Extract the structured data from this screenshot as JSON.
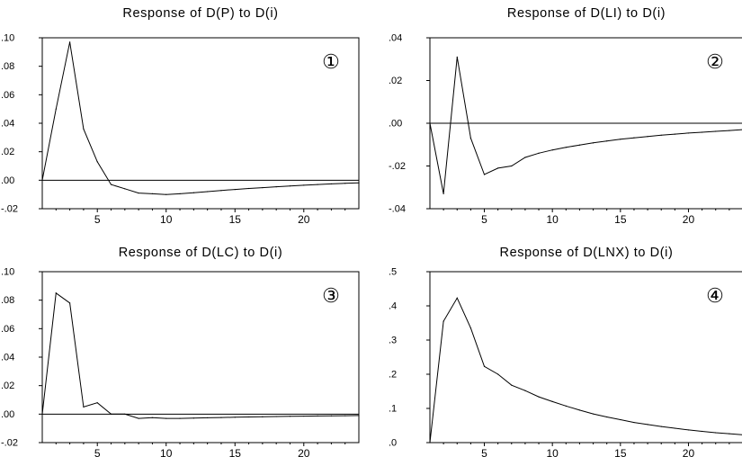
{
  "chart_data": [
    {
      "type": "line",
      "title": "Response of D(P) to D(i)",
      "panel_label": "①",
      "x": [
        1,
        2,
        3,
        4,
        5,
        6,
        7,
        8,
        9,
        10,
        11,
        12,
        13,
        14,
        15,
        16,
        17,
        18,
        19,
        20,
        21,
        22,
        23,
        24
      ],
      "series": [
        {
          "values": [
            0.0,
            0.05,
            0.097,
            0.036,
            0.013,
            -0.003,
            -0.006,
            -0.009,
            -0.0095,
            -0.01,
            -0.0095,
            -0.0088,
            -0.008,
            -0.0072,
            -0.0065,
            -0.0058,
            -0.0052,
            -0.0046,
            -0.004,
            -0.0035,
            -0.003,
            -0.0026,
            -0.0022,
            -0.0018
          ]
        }
      ],
      "xlim": [
        1,
        24
      ],
      "ylim": [
        -0.02,
        0.1
      ],
      "xticks": [
        5,
        10,
        15,
        20
      ],
      "xtick_labels": [
        "5",
        "10",
        "15",
        "20"
      ],
      "yticks": [
        -0.02,
        0.0,
        0.02,
        0.04,
        0.06,
        0.08,
        0.1
      ],
      "ytick_labels": [
        "-.02",
        ".00",
        ".02",
        ".04",
        ".06",
        ".08",
        ".10"
      ],
      "zero_line": true,
      "grid": false
    },
    {
      "type": "line",
      "title": "Response of D(LI) to D(i)",
      "panel_label": "②",
      "x": [
        1,
        2,
        3,
        4,
        5,
        6,
        7,
        8,
        9,
        10,
        11,
        12,
        13,
        14,
        15,
        16,
        17,
        18,
        19,
        20,
        21,
        22,
        23,
        24
      ],
      "series": [
        {
          "values": [
            0.0,
            -0.033,
            0.031,
            -0.007,
            -0.024,
            -0.021,
            -0.02,
            -0.016,
            -0.014,
            -0.0125,
            -0.0113,
            -0.0102,
            -0.0092,
            -0.0083,
            -0.0075,
            -0.0068,
            -0.0062,
            -0.0056,
            -0.0051,
            -0.0046,
            -0.0042,
            -0.0038,
            -0.0034,
            -0.003
          ]
        }
      ],
      "xlim": [
        1,
        24
      ],
      "ylim": [
        -0.04,
        0.04
      ],
      "xticks": [
        5,
        10,
        15,
        20
      ],
      "xtick_labels": [
        "5",
        "10",
        "15",
        "20"
      ],
      "yticks": [
        -0.04,
        -0.02,
        0.0,
        0.02,
        0.04
      ],
      "ytick_labels": [
        "-.04",
        "-.02",
        ".00",
        ".02",
        ".04"
      ],
      "zero_line": true,
      "grid": false
    },
    {
      "type": "line",
      "title": "Response of D(LC) to D(i)",
      "panel_label": "③",
      "x": [
        1,
        2,
        3,
        4,
        5,
        6,
        7,
        8,
        9,
        10,
        11,
        12,
        13,
        14,
        15,
        16,
        17,
        18,
        19,
        20,
        21,
        22,
        23,
        24
      ],
      "series": [
        {
          "values": [
            0.0,
            0.085,
            0.078,
            0.005,
            0.008,
            0.0,
            0.0,
            -0.003,
            -0.0025,
            -0.003,
            -0.003,
            -0.0028,
            -0.0026,
            -0.0024,
            -0.0022,
            -0.002,
            -0.0019,
            -0.0017,
            -0.0015,
            -0.0014,
            -0.0013,
            -0.0012,
            -0.0011,
            -0.001
          ]
        }
      ],
      "xlim": [
        1,
        24
      ],
      "ylim": [
        -0.02,
        0.1
      ],
      "xticks": [
        5,
        10,
        15,
        20
      ],
      "xtick_labels": [
        "5",
        "10",
        "15",
        "20"
      ],
      "yticks": [
        -0.02,
        0.0,
        0.02,
        0.04,
        0.06,
        0.08,
        0.1
      ],
      "ytick_labels": [
        "-.02",
        ".00",
        ".02",
        ".04",
        ".06",
        ".08",
        ".10"
      ],
      "zero_line": true,
      "grid": false
    },
    {
      "type": "line",
      "title": "Response of D(LNX) to D(i)",
      "panel_label": "④",
      "x": [
        1,
        2,
        3,
        4,
        5,
        6,
        7,
        8,
        9,
        10,
        11,
        12,
        13,
        14,
        15,
        16,
        17,
        18,
        19,
        20,
        21,
        22,
        23,
        24
      ],
      "series": [
        {
          "values": [
            0.0,
            0.355,
            0.423,
            0.335,
            0.223,
            0.2,
            0.168,
            0.152,
            0.134,
            0.12,
            0.107,
            0.095,
            0.084,
            0.075,
            0.067,
            0.059,
            0.053,
            0.047,
            0.042,
            0.037,
            0.033,
            0.029,
            0.026,
            0.023
          ]
        }
      ],
      "xlim": [
        1,
        24
      ],
      "ylim": [
        0.0,
        0.5
      ],
      "xticks": [
        5,
        10,
        15,
        20
      ],
      "xtick_labels": [
        "5",
        "10",
        "15",
        "20"
      ],
      "yticks": [
        0.0,
        0.1,
        0.2,
        0.3,
        0.4,
        0.5
      ],
      "ytick_labels": [
        ".0",
        ".1",
        ".2",
        ".3",
        ".4",
        ".5"
      ],
      "zero_line": true,
      "grid": false
    }
  ]
}
